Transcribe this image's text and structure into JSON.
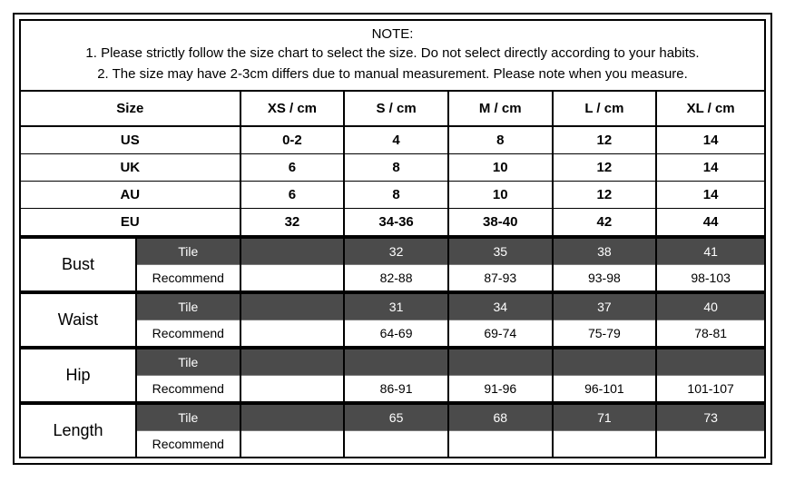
{
  "note": {
    "title": "NOTE:",
    "line1": "1. Please strictly follow the size chart  to select the size. Do not select directly according to your habits.",
    "line2": "2. The size may have 2-3cm differs due to manual measurement. Please note when you measure."
  },
  "headers": {
    "size": "Size",
    "c1": "XS / cm",
    "c2": "S / cm",
    "c3": "M / cm",
    "c4": "L / cm",
    "c5": "XL / cm"
  },
  "regions": {
    "us": {
      "label": "US",
      "v1": "0-2",
      "v2": "4",
      "v3": "8",
      "v4": "12",
      "v5": "14"
    },
    "uk": {
      "label": "UK",
      "v1": "6",
      "v2": "8",
      "v3": "10",
      "v4": "12",
      "v5": "14"
    },
    "au": {
      "label": "AU",
      "v1": "6",
      "v2": "8",
      "v3": "10",
      "v4": "12",
      "v5": "14"
    },
    "eu": {
      "label": "EU",
      "v1": "32",
      "v2": "34-36",
      "v3": "38-40",
      "v4": "42",
      "v5": "44"
    }
  },
  "labels": {
    "tile": "Tile",
    "recommend": "Recommend"
  },
  "measurements": {
    "bust": {
      "label": "Bust",
      "tile": {
        "v1": "",
        "v2": "32",
        "v3": "35",
        "v4": "38",
        "v5": "41"
      },
      "recommend": {
        "v1": "",
        "v2": "82-88",
        "v3": "87-93",
        "v4": "93-98",
        "v5": "98-103"
      }
    },
    "waist": {
      "label": "Waist",
      "tile": {
        "v1": "",
        "v2": "31",
        "v3": "34",
        "v4": "37",
        "v5": "40"
      },
      "recommend": {
        "v1": "",
        "v2": "64-69",
        "v3": "69-74",
        "v4": "75-79",
        "v5": "78-81"
      }
    },
    "hip": {
      "label": "Hip",
      "tile": {
        "v1": "",
        "v2": "",
        "v3": "",
        "v4": "",
        "v5": ""
      },
      "recommend": {
        "v1": "",
        "v2": "86-91",
        "v3": "91-96",
        "v4": "96-101",
        "v5": "101-107"
      }
    },
    "length": {
      "label": "Length",
      "tile": {
        "v1": "",
        "v2": "65",
        "v3": "68",
        "v4": "71",
        "v5": "73"
      },
      "recommend": {
        "v1": "",
        "v2": "",
        "v3": "",
        "v4": "",
        "v5": ""
      }
    }
  },
  "styling": {
    "type": "table",
    "outer_border_color": "#000000",
    "tile_row_bg": "#4b4b4b",
    "tile_row_fg": "#ffffff",
    "recommend_row_bg": "#ffffff",
    "recommend_row_fg": "#000000",
    "header_fontsize": 15,
    "data_fontsize": 15,
    "measurement_label_fontsize": 18,
    "font_family": "Arial, Helvetica, sans-serif",
    "section_divider_weight": 4,
    "cell_border_color": "#000000"
  }
}
